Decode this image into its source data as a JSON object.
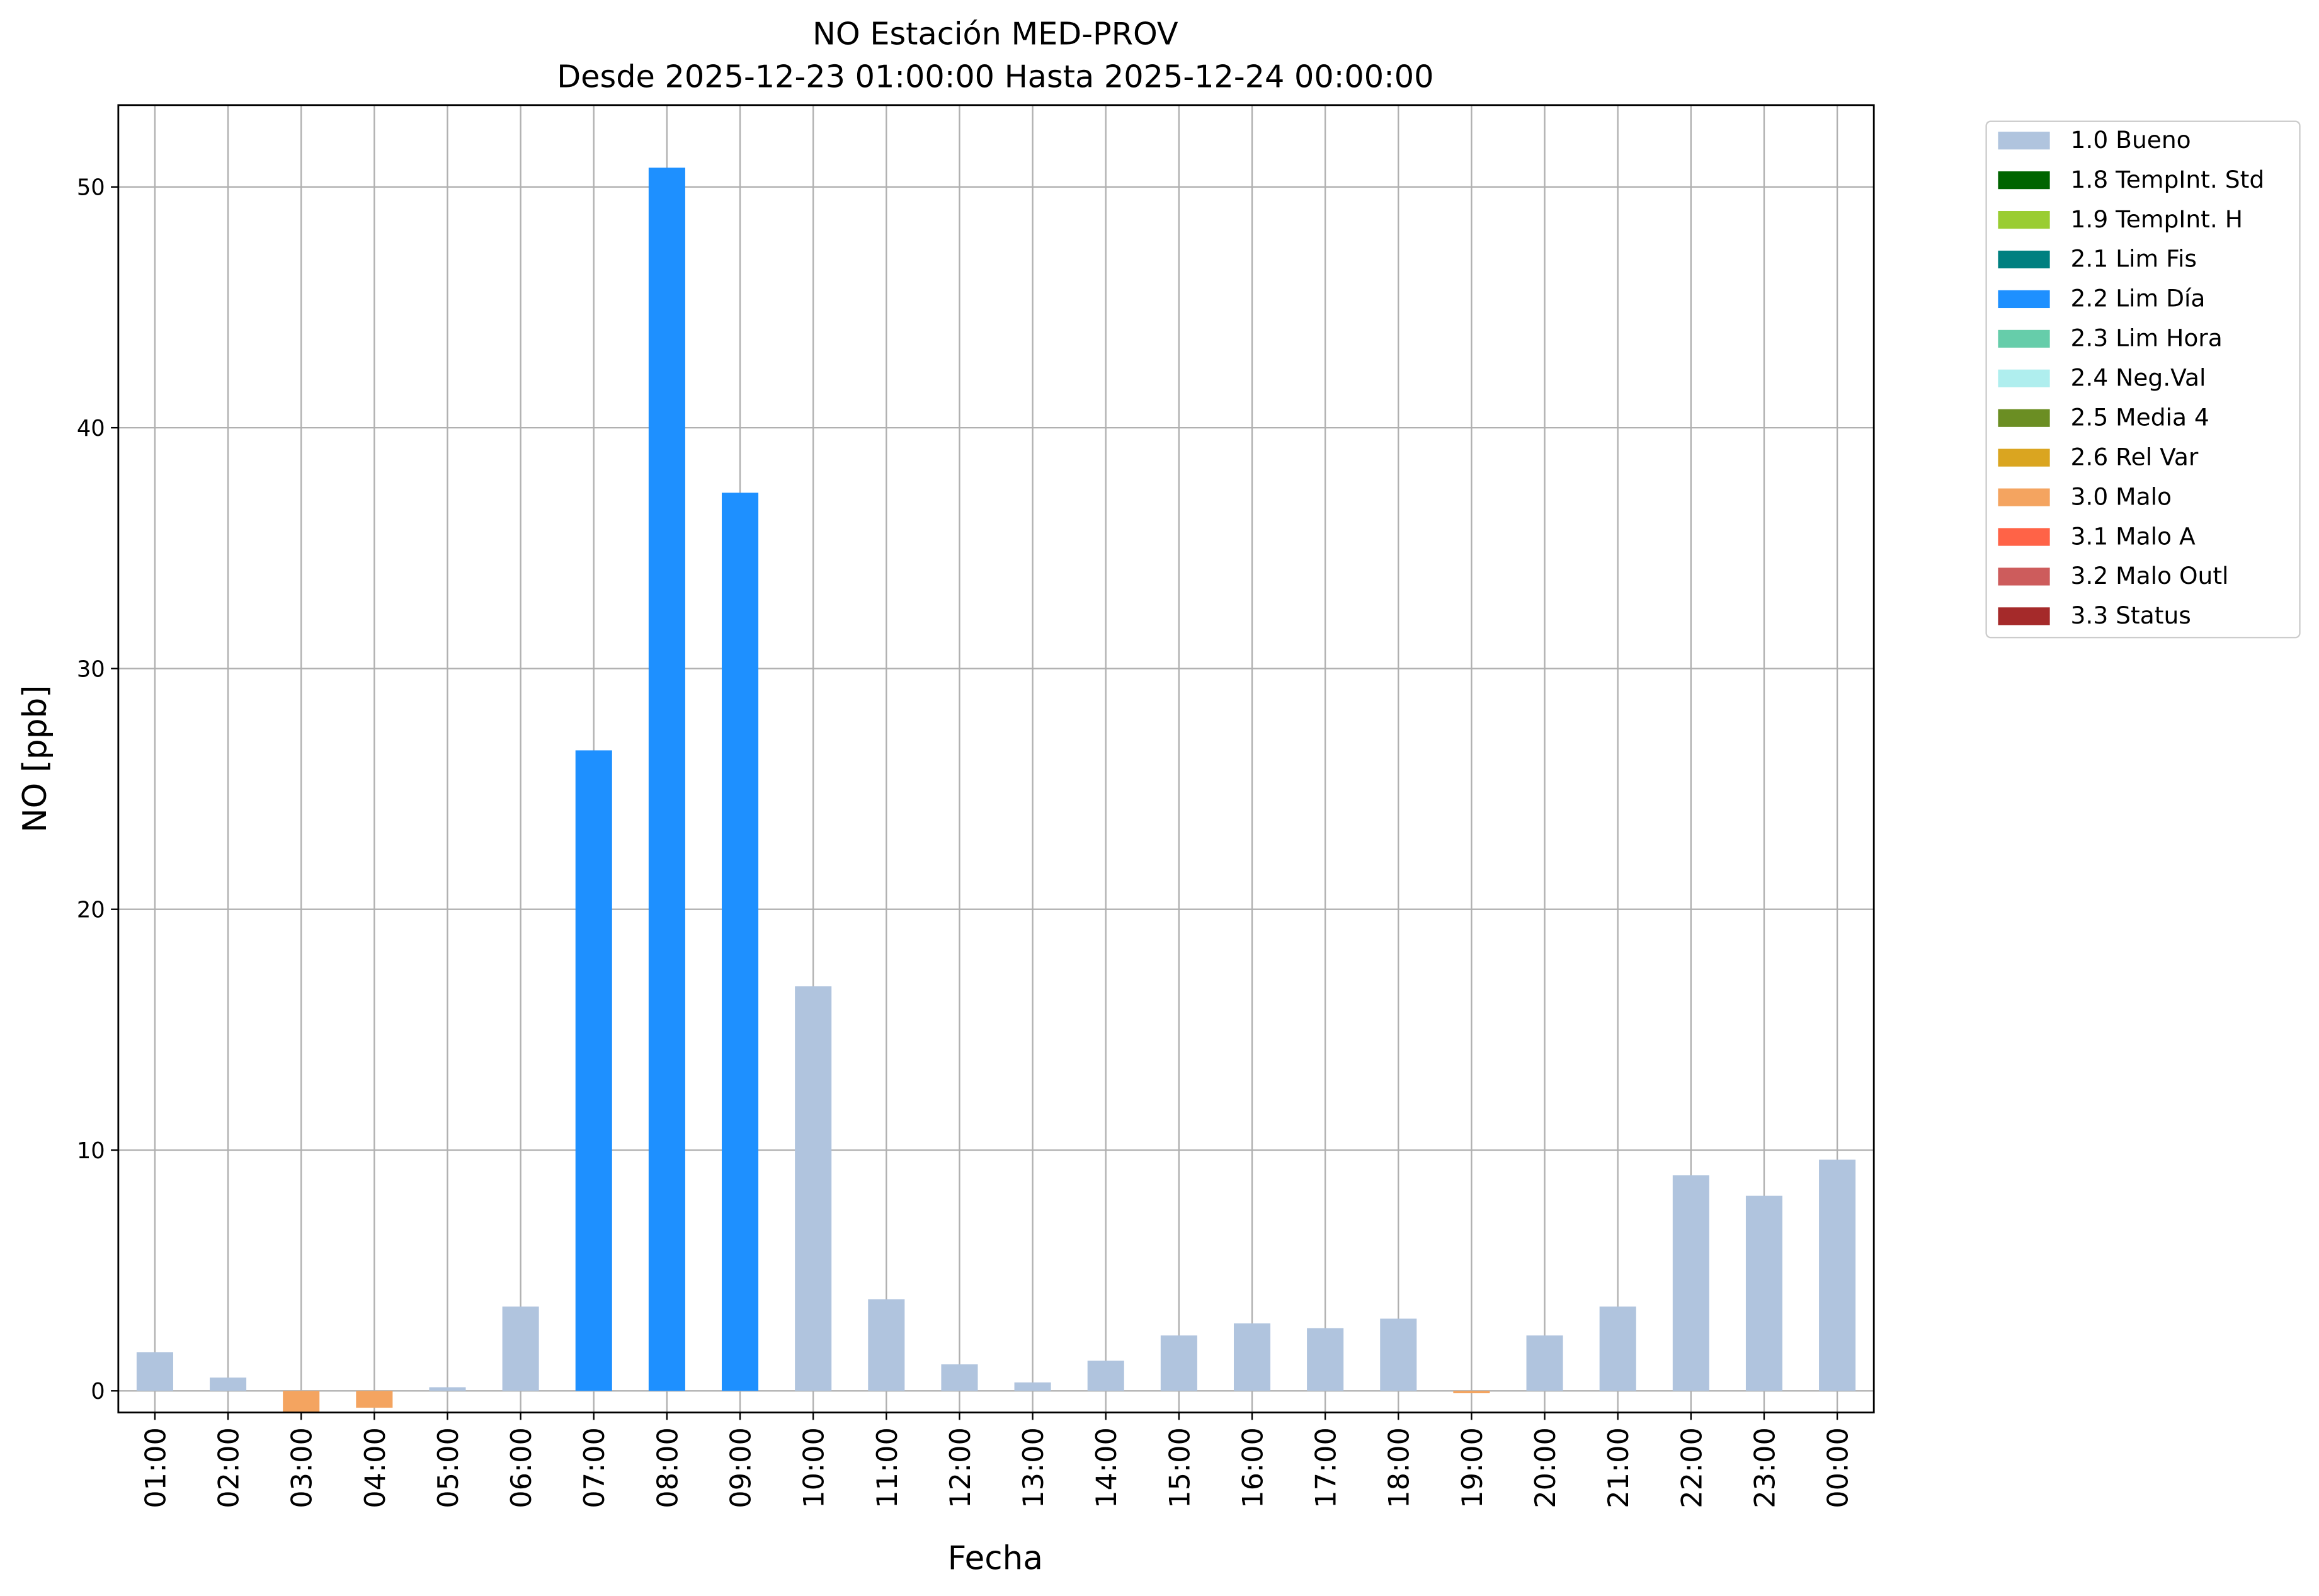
{
  "chart_data": {
    "type": "bar",
    "title": "NO Estación MED-PROV",
    "subtitle": "Desde 2025-12-23 01:00:00 Hasta 2025-12-24 00:00:00",
    "x_label": "Fecha",
    "y_label": "NO [ppb]",
    "categories": [
      "01:00",
      "02:00",
      "03:00",
      "04:00",
      "05:00",
      "06:00",
      "07:00",
      "08:00",
      "09:00",
      "10:00",
      "11:00",
      "12:00",
      "13:00",
      "14:00",
      "15:00",
      "16:00",
      "17:00",
      "18:00",
      "19:00",
      "20:00",
      "21:00",
      "22:00",
      "23:00",
      "00:00"
    ],
    "ylim": [
      -0.9,
      53.4
    ],
    "yticks": [
      0,
      10,
      20,
      30,
      40,
      50
    ],
    "grid": true,
    "legend": "outside-upper-right",
    "series": [
      {
        "name": "1.0 Bueno",
        "color": "#b0c4de",
        "values": [
          1.6,
          0.55,
          null,
          null,
          0.15,
          3.5,
          null,
          null,
          null,
          16.8,
          3.8,
          1.1,
          0.35,
          1.25,
          2.3,
          2.8,
          2.6,
          3.0,
          null,
          2.3,
          3.5,
          8.95,
          8.1,
          9.6
        ]
      },
      {
        "name": "1.8 TempInt. Std",
        "color": "#006400",
        "values": [
          null,
          null,
          null,
          null,
          null,
          null,
          null,
          null,
          null,
          null,
          null,
          null,
          null,
          null,
          null,
          null,
          null,
          null,
          null,
          null,
          null,
          null,
          null,
          null
        ]
      },
      {
        "name": "1.9 TempInt. H",
        "color": "#9acd32",
        "values": [
          null,
          null,
          null,
          null,
          null,
          null,
          null,
          null,
          null,
          null,
          null,
          null,
          null,
          null,
          null,
          null,
          null,
          null,
          null,
          null,
          null,
          null,
          null,
          null
        ]
      },
      {
        "name": "2.1 Lim Fis",
        "color": "#008080",
        "values": [
          null,
          null,
          null,
          null,
          null,
          null,
          null,
          null,
          null,
          null,
          null,
          null,
          null,
          null,
          null,
          null,
          null,
          null,
          null,
          null,
          null,
          null,
          null,
          null
        ]
      },
      {
        "name": "2.2 Lim Día",
        "color": "#1e90ff",
        "values": [
          null,
          null,
          null,
          null,
          null,
          null,
          26.6,
          50.8,
          37.3,
          null,
          null,
          null,
          null,
          null,
          null,
          null,
          null,
          null,
          null,
          null,
          null,
          null,
          null,
          null
        ]
      },
      {
        "name": "2.3 Lim Hora",
        "color": "#66cdaa",
        "values": [
          null,
          null,
          null,
          null,
          null,
          null,
          null,
          null,
          null,
          null,
          null,
          null,
          null,
          null,
          null,
          null,
          null,
          null,
          null,
          null,
          null,
          null,
          null,
          null
        ]
      },
      {
        "name": "2.4 Neg.Val",
        "color": "#afeeee",
        "values": [
          null,
          null,
          null,
          null,
          null,
          null,
          null,
          null,
          null,
          null,
          null,
          null,
          null,
          null,
          null,
          null,
          null,
          null,
          null,
          null,
          null,
          null,
          null,
          null
        ]
      },
      {
        "name": "2.5 Media 4",
        "color": "#6b8e23",
        "values": [
          null,
          null,
          null,
          null,
          null,
          null,
          null,
          null,
          null,
          null,
          null,
          null,
          null,
          null,
          null,
          null,
          null,
          null,
          null,
          null,
          null,
          null,
          null,
          null
        ]
      },
      {
        "name": "2.6 Rel Var",
        "color": "#daa520",
        "values": [
          null,
          null,
          null,
          null,
          null,
          null,
          null,
          null,
          null,
          null,
          null,
          null,
          null,
          null,
          null,
          null,
          null,
          null,
          null,
          null,
          null,
          null,
          null,
          null
        ]
      },
      {
        "name": "3.0 Malo",
        "color": "#f4a460",
        "values": [
          null,
          null,
          -0.9,
          -0.7,
          null,
          null,
          null,
          null,
          null,
          null,
          null,
          null,
          null,
          null,
          null,
          null,
          null,
          null,
          -0.1,
          null,
          null,
          null,
          null,
          null
        ]
      },
      {
        "name": "3.1 Malo A",
        "color": "#ff6347",
        "values": [
          null,
          null,
          null,
          null,
          null,
          null,
          null,
          null,
          null,
          null,
          null,
          null,
          null,
          null,
          null,
          null,
          null,
          null,
          null,
          null,
          null,
          null,
          null,
          null
        ]
      },
      {
        "name": "3.2 Malo Outl",
        "color": "#cd5c5c",
        "values": [
          null,
          null,
          null,
          null,
          null,
          null,
          null,
          null,
          null,
          null,
          null,
          null,
          null,
          null,
          null,
          null,
          null,
          null,
          null,
          null,
          null,
          null,
          null,
          null
        ]
      },
      {
        "name": "3.3 Status",
        "color": "#a52a2a",
        "values": [
          null,
          null,
          null,
          null,
          null,
          null,
          null,
          null,
          null,
          null,
          null,
          null,
          null,
          null,
          null,
          null,
          null,
          null,
          null,
          null,
          null,
          null,
          null,
          null
        ]
      }
    ]
  }
}
